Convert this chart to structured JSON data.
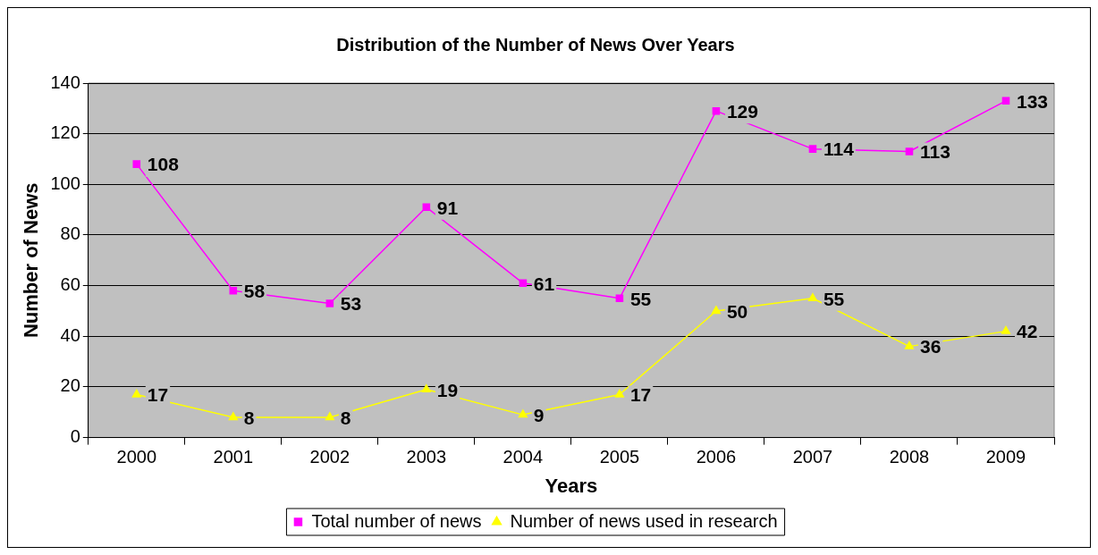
{
  "chart_data": {
    "type": "line",
    "title": "Distribution of the Number of News Over Years",
    "xlabel": "Years",
    "ylabel": "Number of News",
    "categories": [
      "2000",
      "2001",
      "2002",
      "2003",
      "2004",
      "2005",
      "2006",
      "2007",
      "2008",
      "2009"
    ],
    "series": [
      {
        "name": "Total number of news",
        "color": "#ff00ff",
        "marker": "square",
        "values": [
          108,
          58,
          53,
          91,
          61,
          55,
          129,
          114,
          113,
          133
        ]
      },
      {
        "name": "Number of news used in research",
        "color": "#ffff00",
        "marker": "triangle",
        "values": [
          17,
          8,
          8,
          19,
          9,
          17,
          50,
          55,
          36,
          42
        ]
      }
    ],
    "ylim": [
      0,
      140
    ],
    "yticks": [
      0,
      20,
      40,
      60,
      80,
      100,
      120,
      140
    ],
    "grid": "y",
    "legend": "bottom",
    "data_labels": true,
    "line_style": "solid"
  }
}
